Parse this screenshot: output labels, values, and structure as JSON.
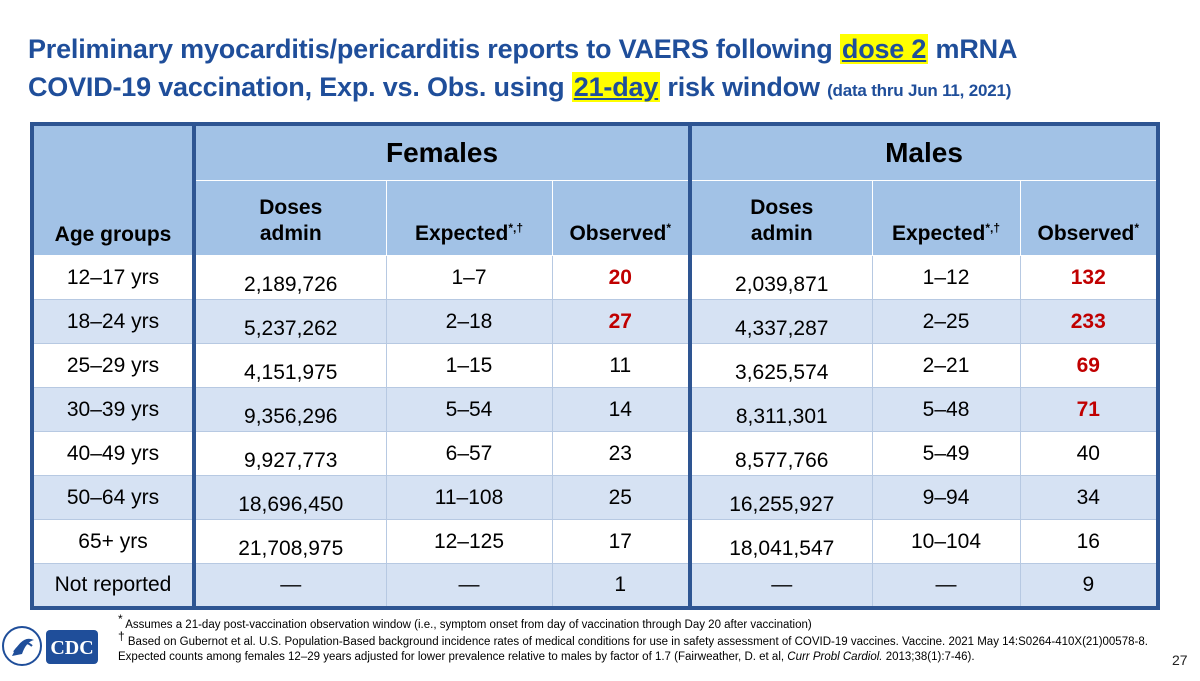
{
  "title": {
    "line1_pre": "Preliminary myocarditis/pericarditis reports to VAERS following ",
    "line1_hl": "dose 2",
    "line1_post": " mRNA",
    "line2_pre": "COVID-19 vaccination, Exp. vs. Obs. using ",
    "line2_hl": "21-day",
    "line2_post": " risk window ",
    "line2_small": "(data thru Jun 11, 2021)"
  },
  "table": {
    "age_header": "Age groups",
    "females_header": "Females",
    "males_header": "Males",
    "col_doses_line1": "Doses",
    "col_doses_line2": "admin",
    "col_expected": "Expected",
    "col_expected_sup": "*,†",
    "col_observed": "Observed",
    "col_observed_sup": "*",
    "rows": [
      {
        "age": "12–17 yrs",
        "f_doses": "2,189,726",
        "f_exp": "1–7",
        "f_obs": "20",
        "m_doses": "2,039,871",
        "m_exp": "1–12",
        "m_obs": "132"
      },
      {
        "age": "18–24 yrs",
        "f_doses": "5,237,262",
        "f_exp": "2–18",
        "f_obs": "27",
        "m_doses": "4,337,287",
        "m_exp": "2–25",
        "m_obs": "233"
      },
      {
        "age": "25–29 yrs",
        "f_doses": "4,151,975",
        "f_exp": "1–15",
        "f_obs": "11",
        "m_doses": "3,625,574",
        "m_exp": "2–21",
        "m_obs": "69"
      },
      {
        "age": "30–39 yrs",
        "f_doses": "9,356,296",
        "f_exp": "5–54",
        "f_obs": "14",
        "m_doses": "8,311,301",
        "m_exp": "5–48",
        "m_obs": "71"
      },
      {
        "age": "40–49 yrs",
        "f_doses": "9,927,773",
        "f_exp": "6–57",
        "f_obs": "23",
        "m_doses": "8,577,766",
        "m_exp": "5–49",
        "m_obs": "40"
      },
      {
        "age": "50–64 yrs",
        "f_doses": "18,696,450",
        "f_exp": "11–108",
        "f_obs": "25",
        "m_doses": "16,255,927",
        "m_exp": "9–94",
        "m_obs": "34"
      },
      {
        "age": "65+ yrs",
        "f_doses": "21,708,975",
        "f_exp": "12–125",
        "f_obs": "17",
        "m_doses": "18,041,547",
        "m_exp": "10–104",
        "m_obs": "16"
      },
      {
        "age": "Not reported",
        "f_doses": "—",
        "f_exp": "—",
        "f_obs": "1",
        "m_doses": "—",
        "m_exp": "—",
        "m_obs": "9"
      }
    ]
  },
  "footnotes": {
    "fn1_mark": "*",
    "fn1": " Assumes a 21-day post-vaccination observation window (i.e., symptom onset from day of vaccination through Day 20 after vaccination)",
    "fn2_mark": "†",
    "fn2_pre": " Based on Gubernot et al. U.S. Population-Based background incidence rates of medical conditions for use in safety assessment of COVID-19 vaccines. Vaccine. 2021 May 14:S0264-410X(21)00578-8. Expected counts among females 12–29 years adjusted for lower prevalence relative to males by factor of 1.7 (Fairweather, D. et al, ",
    "fn2_journal": "Curr Probl Cardiol.",
    "fn2_post": " 2013;38(1):7-46)."
  },
  "logo": {
    "text": "CDC"
  },
  "page_number": "27",
  "colors": {
    "title": "#1f4e9a",
    "header_fill": "#a2c2e6",
    "stripe": "#d6e2f3",
    "border": "#2e5592",
    "highlight": "#c00000",
    "marker": "#ffff00"
  }
}
